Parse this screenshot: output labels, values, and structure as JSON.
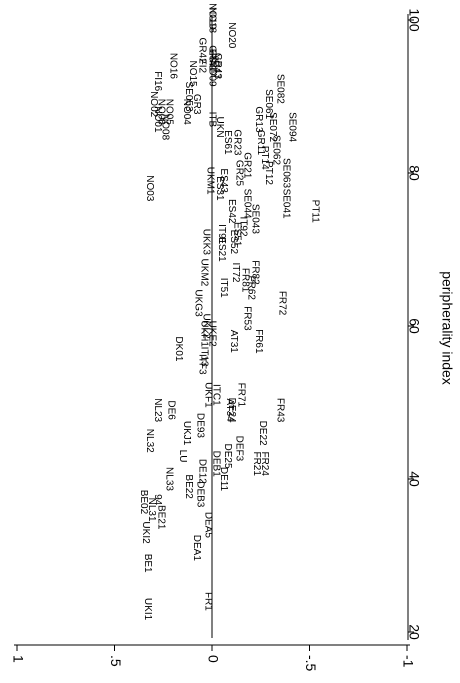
{
  "chart_data": {
    "type": "scatter",
    "rotated": "90deg-clockwise",
    "xlabel": "peripherality index",
    "ylabel": "",
    "x_ticks": [
      20,
      40,
      60,
      80,
      100
    ],
    "y_ticks": [
      1,
      0.5,
      0,
      -0.5,
      -1
    ],
    "y_tick_labels": [
      "1",
      ".5",
      "0",
      "-.5",
      "-1"
    ],
    "xlim": [
      18,
      101
    ],
    "ylim": [
      -1.05,
      1.05
    ],
    "reference_line_y": 0,
    "points": [
      {
        "label": "UKI1",
        "x": 23,
        "y": 0.33
      },
      {
        "label": "FR1",
        "x": 24,
        "y": 0.02
      },
      {
        "label": "BE1",
        "x": 29,
        "y": 0.33
      },
      {
        "label": "UKI2",
        "x": 33,
        "y": 0.34
      },
      {
        "label": "DEA1",
        "x": 31,
        "y": 0.08
      },
      {
        "label": "BE21",
        "x": 35,
        "y": 0.26
      },
      {
        "label": "NL31",
        "x": 36,
        "y": 0.31
      },
      {
        "label": "BE02",
        "x": 37,
        "y": 0.35
      },
      {
        "label": "94",
        "x": 37.3,
        "y": 0.28
      },
      {
        "label": "DEA5",
        "x": 34,
        "y": 0.02
      },
      {
        "label": "DEB3",
        "x": 38,
        "y": 0.06
      },
      {
        "label": "DE11",
        "x": 40,
        "y": -0.06
      },
      {
        "label": "NL33",
        "x": 40,
        "y": 0.22
      },
      {
        "label": "NL32",
        "x": 45,
        "y": 0.32
      },
      {
        "label": "NL23",
        "x": 49,
        "y": 0.28
      },
      {
        "label": "DE6",
        "x": 49,
        "y": 0.21
      },
      {
        "label": "DE12",
        "x": 41,
        "y": 0.05
      },
      {
        "label": "DEB1",
        "x": 42,
        "y": -0.02
      },
      {
        "label": "BE22",
        "x": 39,
        "y": 0.12
      },
      {
        "label": "LU",
        "x": 43,
        "y": 0.15
      },
      {
        "label": "UKJ1",
        "x": 46,
        "y": 0.13
      },
      {
        "label": "DE93",
        "x": 47,
        "y": 0.06
      },
      {
        "label": "ITC1",
        "x": 51,
        "y": -0.02
      },
      {
        "label": "DE25",
        "x": 43,
        "y": -0.08
      },
      {
        "label": "DEF3",
        "x": 44,
        "y": -0.14
      },
      {
        "label": "FR21",
        "x": 42,
        "y": -0.23
      },
      {
        "label": "FR24",
        "x": 42,
        "y": -0.27
      },
      {
        "label": "DE22",
        "x": 46,
        "y": -0.26
      },
      {
        "label": "DK01",
        "x": 57,
        "y": 0.17
      },
      {
        "label": "ITF3",
        "x": 55,
        "y": 0.05
      },
      {
        "label": "UKF1",
        "x": 51,
        "y": 0.02
      },
      {
        "label": "DE24",
        "x": 49,
        "y": -0.1
      },
      {
        "label": "FR43",
        "x": 49,
        "y": -0.35
      },
      {
        "label": "FR72",
        "x": 63,
        "y": -0.36
      },
      {
        "label": "FR81",
        "x": 66,
        "y": -0.17
      },
      {
        "label": "FR82",
        "x": 67,
        "y": -0.22
      },
      {
        "label": "UKK3",
        "x": 71,
        "y": 0.03
      },
      {
        "label": "IT91",
        "x": 72,
        "y": -0.05
      },
      {
        "label": "UKM1",
        "x": 79,
        "y": 0.01
      },
      {
        "label": "NO03",
        "x": 78,
        "y": 0.32
      },
      {
        "label": "NO02",
        "x": 89,
        "y": 0.3
      },
      {
        "label": "NO01",
        "x": 87,
        "y": 0.28
      },
      {
        "label": "NO06",
        "x": 88,
        "y": 0.26
      },
      {
        "label": "NO08",
        "x": 86,
        "y": 0.24
      },
      {
        "label": "FI16",
        "x": 92,
        "y": 0.28
      },
      {
        "label": "NO16",
        "x": 94,
        "y": 0.2
      },
      {
        "label": "NO05",
        "x": 88,
        "y": 0.22
      },
      {
        "label": "NO04",
        "x": 88,
        "y": 0.13
      },
      {
        "label": "SE053",
        "x": 90,
        "y": 0.12
      },
      {
        "label": "GR3",
        "x": 89,
        "y": 0.08
      },
      {
        "label": "NO15",
        "x": 93,
        "y": 0.1
      },
      {
        "label": "FI2",
        "x": 94,
        "y": 0.05
      },
      {
        "label": "NO09",
        "x": 93,
        "y": 0.0
      },
      {
        "label": "NO17",
        "x": 94,
        "y": -0.02
      },
      {
        "label": "GR42",
        "x": 96,
        "y": 0.05
      },
      {
        "label": "NO18",
        "x": 100,
        "y": 0.0
      },
      {
        "label": "NO19",
        "x": 100.5,
        "y": 0.0
      },
      {
        "label": "NO20",
        "x": 98,
        "y": -0.1
      },
      {
        "label": "ES7",
        "x": 95,
        "y": 0.0
      },
      {
        "label": "GR41",
        "x": 95,
        "y": 0.0
      },
      {
        "label": "GR43",
        "x": 94,
        "y": -0.03
      },
      {
        "label": "ITB",
        "x": 87,
        "y": 0.0
      },
      {
        "label": "UKN",
        "x": 86,
        "y": -0.04
      },
      {
        "label": "ES61",
        "x": 84,
        "y": -0.08
      },
      {
        "label": "GR23",
        "x": 84,
        "y": -0.13
      },
      {
        "label": "SE061",
        "x": 89,
        "y": -0.29
      },
      {
        "label": "SE082",
        "x": 91,
        "y": -0.35
      },
      {
        "label": "SE072",
        "x": 86,
        "y": -0.31
      },
      {
        "label": "SE094",
        "x": 86,
        "y": -0.41
      },
      {
        "label": "SE062",
        "x": 83,
        "y": -0.33
      },
      {
        "label": "SE063",
        "x": 80,
        "y": -0.38
      },
      {
        "label": "SE041",
        "x": 76,
        "y": -0.38
      },
      {
        "label": "SE044",
        "x": 76,
        "y": -0.18
      },
      {
        "label": "SE043",
        "x": 74,
        "y": -0.22
      },
      {
        "label": "PT11",
        "x": 75,
        "y": -0.53
      },
      {
        "label": "PT12",
        "x": 80,
        "y": -0.29
      },
      {
        "label": "PT14",
        "x": 82,
        "y": -0.27
      },
      {
        "label": "GR13",
        "x": 87,
        "y": -0.24
      },
      {
        "label": "GR11",
        "x": 84,
        "y": -0.25
      },
      {
        "label": "ES43",
        "x": 79,
        "y": -0.06
      },
      {
        "label": "ES51",
        "x": 72,
        "y": -0.13
      },
      {
        "label": "ES21",
        "x": 70,
        "y": -0.05
      },
      {
        "label": "ES52",
        "x": 71,
        "y": -0.11
      },
      {
        "label": "IT72",
        "x": 67,
        "y": -0.12
      },
      {
        "label": "IT51",
        "x": 65,
        "y": -0.06
      },
      {
        "label": "UKM2",
        "x": 67,
        "y": 0.04
      },
      {
        "label": "UKH1",
        "x": 59,
        "y": 0.04
      },
      {
        "label": "UKG3",
        "x": 63,
        "y": 0.07
      },
      {
        "label": "IT13",
        "x": 56,
        "y": 0.04
      },
      {
        "label": "UKE2",
        "x": 59,
        "y": 0.0
      },
      {
        "label": "UKL2",
        "x": 60,
        "y": 0.03
      },
      {
        "label": "AT34",
        "x": 49,
        "y": -0.09
      },
      {
        "label": "FR71",
        "x": 51,
        "y": -0.15
      },
      {
        "label": "AT31",
        "x": 58,
        "y": -0.11
      },
      {
        "label": "FR53",
        "x": 61,
        "y": -0.18
      },
      {
        "label": "FR62",
        "x": 65,
        "y": -0.2
      },
      {
        "label": "FR61",
        "x": 58,
        "y": -0.24
      },
      {
        "label": "GR25",
        "x": 80,
        "y": -0.14
      },
      {
        "label": "GR21",
        "x": 81,
        "y": -0.18
      },
      {
        "label": "ES31",
        "x": 78,
        "y": -0.04
      },
      {
        "label": "ES42",
        "x": 75,
        "y": -0.1
      },
      {
        "label": "IT92",
        "x": 73,
        "y": -0.16
      }
    ]
  }
}
